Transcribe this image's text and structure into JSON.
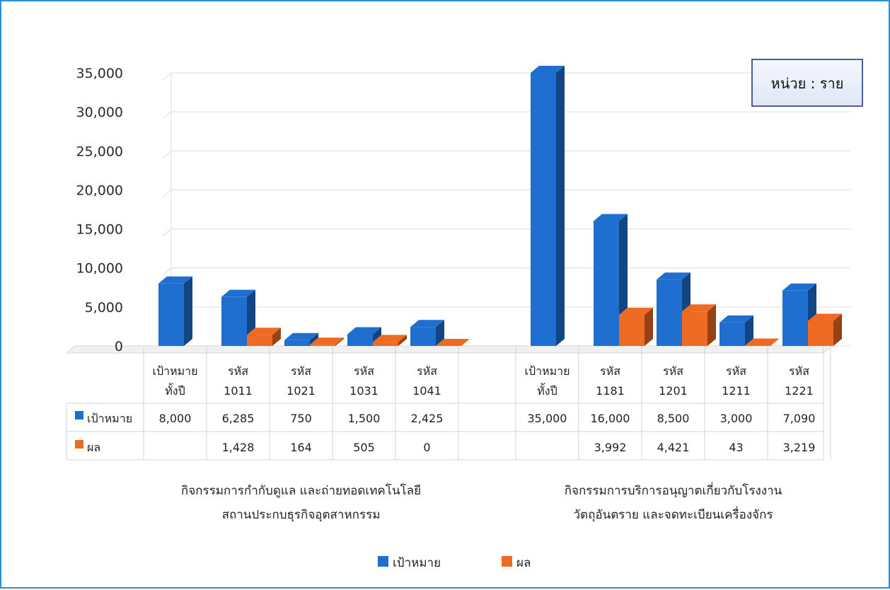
{
  "chart_data": {
    "type": "bar",
    "style": "3d-clustered-column-with-data-table",
    "unit_label": "หน่วย : ราย",
    "ylim": [
      0,
      35000
    ],
    "yticks": [
      "0",
      "5,000",
      "10,000",
      "15,000",
      "20,000",
      "25,000",
      "30,000",
      "35,000"
    ],
    "grid": true,
    "legend_position": "bottom",
    "series": [
      {
        "name": "เป้าหมาย",
        "color": "#1f6fd1"
      },
      {
        "name": "ผล",
        "color": "#ef6b24"
      }
    ],
    "groups": [
      {
        "title": [
          "กิจกรรมการกำกับดูแล และถ่ายทอดเทคโนโลยี",
          "สถานประกบธุรกิจอุตสาหกรรม"
        ],
        "categories": [
          {
            "label": [
              "เป้าหมาย",
              "ทั้งปี"
            ],
            "target": 8000,
            "target_text": "8,000",
            "result": null,
            "result_text": ""
          },
          {
            "label": [
              "รหัส",
              "1011"
            ],
            "target": 6285,
            "target_text": "6,285",
            "result": 1428,
            "result_text": "1,428"
          },
          {
            "label": [
              "รหัส",
              "1021"
            ],
            "target": 750,
            "target_text": "750",
            "result": 164,
            "result_text": "164"
          },
          {
            "label": [
              "รหัส",
              "1031"
            ],
            "target": 1500,
            "target_text": "1,500",
            "result": 505,
            "result_text": "505"
          },
          {
            "label": [
              "รหัส",
              "1041"
            ],
            "target": 2425,
            "target_text": "2,425",
            "result": 0,
            "result_text": "0"
          }
        ]
      },
      {
        "title": [
          "กิจกรรมการบริการอนุญาตเกี่ยวกับโรงงาน",
          "วัตถุอันตราย และจดทะเบียนเครื่องจักร"
        ],
        "categories": [
          {
            "label": [
              "เป้าหมาย",
              "ทั้งปี"
            ],
            "target": 35000,
            "target_text": "35,000",
            "result": null,
            "result_text": ""
          },
          {
            "label": [
              "รหัส",
              "1181"
            ],
            "target": 16000,
            "target_text": "16,000",
            "result": 3992,
            "result_text": "3,992"
          },
          {
            "label": [
              "รหัส",
              "1201"
            ],
            "target": 8500,
            "target_text": "8,500",
            "result": 4421,
            "result_text": "4,421"
          },
          {
            "label": [
              "รหัส",
              "1211"
            ],
            "target": 3000,
            "target_text": "3,000",
            "result": 43,
            "result_text": "43"
          },
          {
            "label": [
              "รหัส",
              "1221"
            ],
            "target": 7090,
            "target_text": "7,090",
            "result": 3219,
            "result_text": "3,219"
          }
        ]
      }
    ]
  }
}
